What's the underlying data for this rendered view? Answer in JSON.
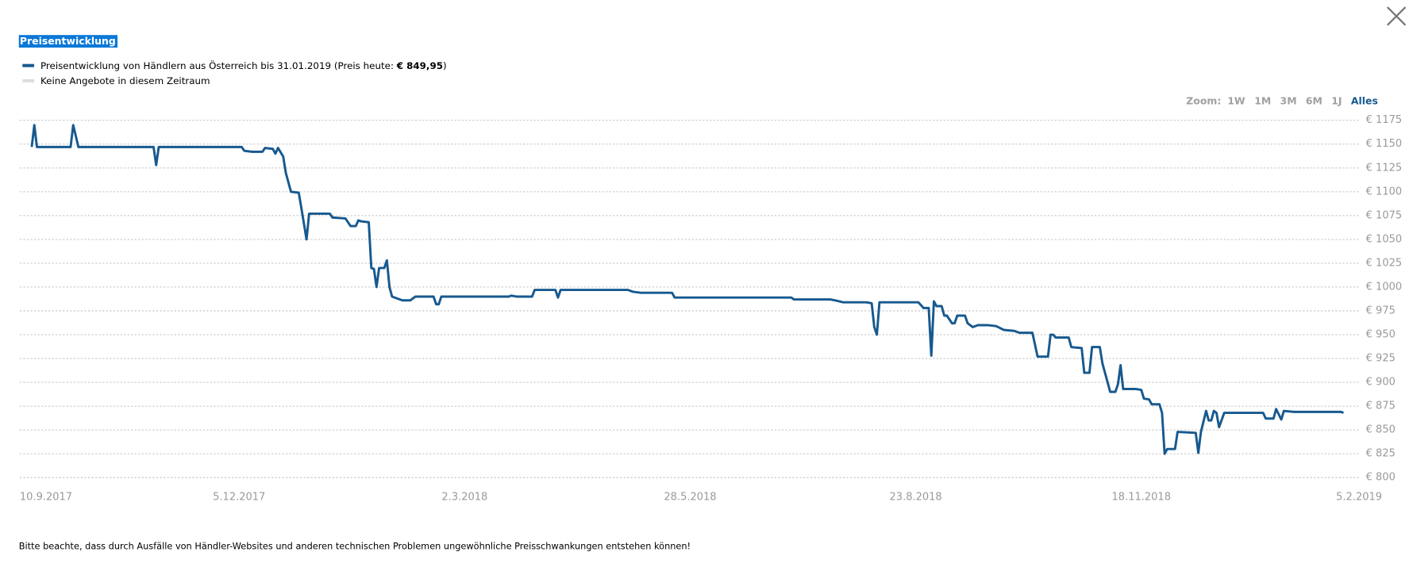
{
  "chart_data": {
    "type": "line",
    "title": "Preisentwicklung",
    "series": [
      {
        "name": "Preisentwicklung von Händlern aus Österreich bis 31.01.2019 (Preis heute: € 849,95)",
        "color": "#17598f",
        "values": [
          1147,
          1170,
          1147,
          1147,
          1170,
          1147,
          1147,
          1128,
          1147,
          1147,
          1143,
          1142,
          1142,
          1146,
          1145,
          1140,
          1146,
          1137,
          1120,
          1110,
          1100,
          1099,
          1083,
          1050,
          1077,
          1077,
          1073,
          1072,
          1064,
          1064,
          1070,
          1069,
          1068,
          1020,
          1019,
          1000,
          1020,
          1020,
          1028,
          1000,
          990,
          988,
          986,
          986,
          990,
          990,
          982,
          982,
          990,
          990,
          991,
          990,
          990,
          997,
          997,
          989,
          997,
          997,
          995,
          994,
          994,
          989,
          989,
          987,
          987,
          986,
          984,
          984,
          983,
          958,
          950,
          984,
          984,
          978,
          978,
          928,
          985,
          980,
          980,
          970,
          970,
          962,
          962,
          970,
          970,
          962,
          958,
          960,
          960,
          959,
          955,
          954,
          952,
          952,
          927,
          927,
          950,
          950,
          947,
          947,
          937,
          936,
          910,
          910,
          937,
          937,
          920,
          890,
          890,
          898,
          918,
          893,
          893,
          892,
          883,
          882,
          877,
          877,
          868,
          825,
          830,
          830,
          848,
          847,
          826,
          848,
          870,
          860,
          860,
          870,
          868,
          853,
          868,
          868,
          862,
          862,
          872,
          861,
          870,
          869,
          869,
          868
        ]
      }
    ],
    "x": [
      "2017-09-16",
      "2017-09-17",
      "2017-09-18",
      "2017-10-01",
      "2017-10-02",
      "2017-10-04",
      "2017-11-02",
      "2017-11-03",
      "2017-11-04",
      "2017-12-06",
      "2017-12-07",
      "2017-12-10",
      "2017-12-14",
      "2017-12-15",
      "2017-12-18",
      "2017-12-19",
      "2017-12-20",
      "2017-12-22",
      "2017-12-23",
      "2017-12-24",
      "2017-12-25",
      "2017-12-28",
      "2017-12-29",
      "2017-12-31",
      "2018-01-01",
      "2018-01-09",
      "2018-01-10",
      "2018-01-15",
      "2018-01-17",
      "2018-01-19",
      "2018-01-20",
      "2018-01-21",
      "2018-01-24",
      "2018-01-25",
      "2018-01-26",
      "2018-01-27",
      "2018-01-28",
      "2018-01-30",
      "2018-01-31",
      "2018-02-01",
      "2018-02-02",
      "2018-02-04",
      "2018-02-06",
      "2018-02-09",
      "2018-02-11",
      "2018-02-18",
      "2018-02-19",
      "2018-02-20",
      "2018-02-21",
      "2018-03-19",
      "2018-03-20",
      "2018-03-22",
      "2018-03-28",
      "2018-03-29",
      "2018-04-06",
      "2018-04-07",
      "2018-04-08",
      "2018-05-04",
      "2018-05-06",
      "2018-05-09",
      "2018-05-21",
      "2018-05-22",
      "2018-07-06",
      "2018-07-07",
      "2018-07-21",
      "2018-07-23",
      "2018-07-26",
      "2018-08-04",
      "2018-08-06",
      "2018-08-07",
      "2018-08-08",
      "2018-08-09",
      "2018-08-24",
      "2018-08-26",
      "2018-08-28",
      "2018-08-29",
      "2018-08-30",
      "2018-08-31",
      "2018-09-02",
      "2018-09-03",
      "2018-09-04",
      "2018-09-06",
      "2018-09-07",
      "2018-09-08",
      "2018-09-11",
      "2018-09-12",
      "2018-09-14",
      "2018-09-16",
      "2018-09-20",
      "2018-09-23",
      "2018-09-26",
      "2018-09-30",
      "2018-10-02",
      "2018-10-07",
      "2018-10-09",
      "2018-10-13",
      "2018-10-14",
      "2018-10-15",
      "2018-10-16",
      "2018-10-21",
      "2018-10-22",
      "2018-10-26",
      "2018-10-27",
      "2018-10-29",
      "2018-10-30",
      "2018-11-02",
      "2018-11-03",
      "2018-11-06",
      "2018-11-08",
      "2018-11-09",
      "2018-11-10",
      "2018-11-11",
      "2018-11-16",
      "2018-11-18",
      "2018-11-19",
      "2018-11-21",
      "2018-11-22",
      "2018-11-25",
      "2018-11-26",
      "2018-11-27",
      "2018-11-28",
      "2018-12-01",
      "2018-12-02",
      "2018-12-09",
      "2018-12-10",
      "2018-12-11",
      "2018-12-13",
      "2018-12-14",
      "2018-12-15",
      "2018-12-16",
      "2018-12-17",
      "2018-12-18",
      "2018-12-20",
      "2019-01-04",
      "2019-01-05",
      "2019-01-08",
      "2019-01-09",
      "2019-01-11",
      "2019-01-12",
      "2019-01-16",
      "2019-02-03",
      "2019-02-04"
    ],
    "xlim": [
      "2017-09-10",
      "2019-02-05"
    ],
    "xticks": [
      {
        "value": "2017-09-10",
        "label": "10.9.2017"
      },
      {
        "value": "2017-12-05",
        "label": "5.12.2017"
      },
      {
        "value": "2018-03-02",
        "label": "2.3.2018"
      },
      {
        "value": "2018-05-28",
        "label": "28.5.2018"
      },
      {
        "value": "2018-08-23",
        "label": "23.8.2018"
      },
      {
        "value": "2018-11-18",
        "label": "18.11.2018"
      },
      {
        "value": "2019-02-05",
        "label": "5.2.2019"
      }
    ],
    "ylim": [
      800,
      1175
    ],
    "yticks": [
      {
        "value": 800,
        "label": "€ 800"
      },
      {
        "value": 825,
        "label": "€ 825"
      },
      {
        "value": 850,
        "label": "€ 850"
      },
      {
        "value": 875,
        "label": "€ 875"
      },
      {
        "value": 900,
        "label": "€ 900"
      },
      {
        "value": 925,
        "label": "€ 925"
      },
      {
        "value": 950,
        "label": "€ 950"
      },
      {
        "value": 975,
        "label": "€ 975"
      },
      {
        "value": 1000,
        "label": "€ 1000"
      },
      {
        "value": 1025,
        "label": "€ 1025"
      },
      {
        "value": 1050,
        "label": "€ 1050"
      },
      {
        "value": 1075,
        "label": "€ 1075"
      },
      {
        "value": 1100,
        "label": "€ 1100"
      },
      {
        "value": 1125,
        "label": "€ 1125"
      },
      {
        "value": 1150,
        "label": "€ 1150"
      },
      {
        "value": 1175,
        "label": "€ 1175"
      }
    ],
    "grid": true,
    "no_offers": {
      "label": "Keine Angebote in diesem Zeitraum",
      "color": "#dddddd"
    },
    "zoom": {
      "label": "Zoom:",
      "options": [
        "1W",
        "1M",
        "3M",
        "6M",
        "1J",
        "Alles"
      ],
      "active": 5
    },
    "note": "Bitte beachte, dass durch Ausfälle von Händler-Websites und anderen technischen Problemen ungewöhnliche Preisschwankungen entstehen können!"
  }
}
